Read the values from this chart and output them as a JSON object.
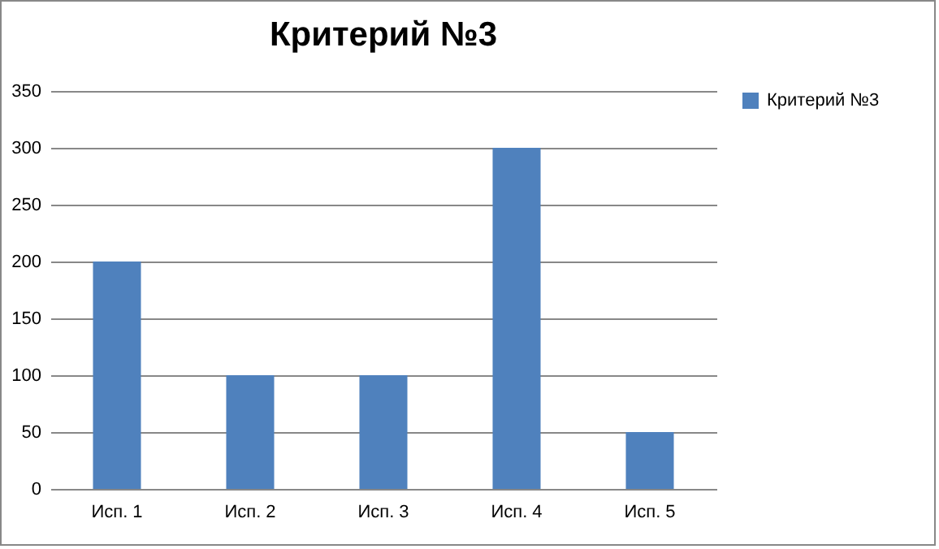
{
  "chart_data": {
    "type": "bar",
    "title": "Критерий №3",
    "categories": [
      "Исп. 1",
      "Исп. 2",
      "Исп. 3",
      "Исп. 4",
      "Исп. 5"
    ],
    "series": [
      {
        "name": "Критерий №3",
        "color": "#4f81bd",
        "values": [
          200,
          100,
          100,
          300,
          50
        ]
      }
    ],
    "ylim": [
      0,
      350
    ],
    "yticks": [
      0,
      50,
      100,
      150,
      200,
      250,
      300,
      350
    ],
    "grid": "y",
    "legend": "right"
  }
}
